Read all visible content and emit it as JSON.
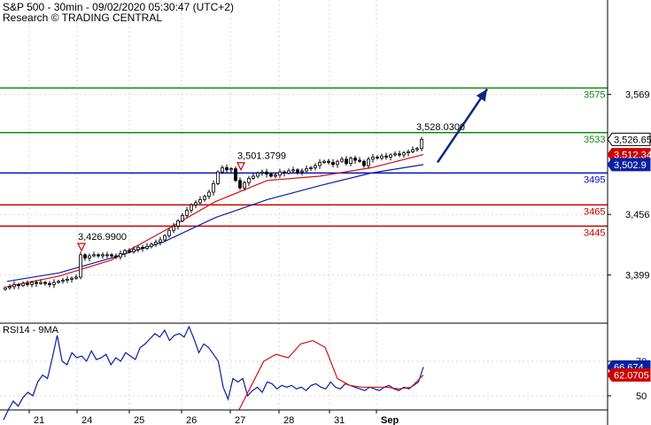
{
  "header": {
    "title": "S&P 500 - 30min - 09/02/2020 05:30:47 (UTC+2)",
    "subtitle": "Research © TRADING CENTRAL"
  },
  "rsi_title": "RSI14 - 9MA",
  "x_labels": [
    "21",
    "24",
    "25",
    "26",
    "27",
    "28",
    "31",
    "Sep"
  ],
  "colors": {
    "candle": "#000000",
    "ma_fast": "#d01010",
    "ma_slow": "#0a1fa0",
    "resistance": "#118811",
    "pivot": "#0010c8",
    "support": "#cc0000",
    "arrow": "#0a2680",
    "rsi": "#0a1fa0",
    "rsi_ma": "#d01010",
    "label_bg": "#0a1fa0",
    "badge_red": "#cc0000"
  },
  "chart_data": [
    {
      "type": "candlestick",
      "title": "S&P 500 - 30min",
      "y_ticks": [
        3569,
        3456,
        3399
      ],
      "y_tick_labels": [
        "3,569",
        "3,456",
        "3,399"
      ],
      "levels": [
        {
          "value": 3575,
          "label": "3575",
          "kind": "resistance"
        },
        {
          "value": 3533,
          "label": "3533",
          "kind": "resistance"
        },
        {
          "value": 3495,
          "label": "3495",
          "kind": "pivot"
        },
        {
          "value": 3465,
          "label": "3465",
          "kind": "support"
        },
        {
          "value": 3445,
          "label": "3445",
          "kind": "support"
        }
      ],
      "badges": [
        {
          "value": 3526.65,
          "label": "3,526.65",
          "style": "price"
        },
        {
          "value": 3512.34,
          "label": "3,512.34",
          "style": "red"
        },
        {
          "value": 3502.9,
          "label": "3,502.9",
          "style": "blue"
        }
      ],
      "annotations": [
        {
          "value": 3528.03,
          "label": "3,528.0300"
        },
        {
          "value": 3501.3799,
          "label": "3,501.3799",
          "marker": "triangle"
        },
        {
          "value": 3426.99,
          "label": "3,426.9900",
          "marker": "triangle"
        }
      ],
      "series": [
        {
          "name": "Close",
          "values": [
            3387,
            3388,
            3390,
            3389,
            3391,
            3390,
            3392,
            3391,
            3392,
            3391,
            3390,
            3392,
            3393,
            3394,
            3395,
            3396,
            3397,
            3418,
            3415,
            3417,
            3418,
            3417,
            3418,
            3418,
            3417,
            3416,
            3419,
            3422,
            3421,
            3423,
            3425,
            3424,
            3426,
            3428,
            3430,
            3432,
            3436,
            3441,
            3445,
            3450,
            3455,
            3460,
            3465,
            3467,
            3470,
            3473,
            3477,
            3485,
            3496,
            3500,
            3498,
            3499,
            3488,
            3481,
            3486,
            3490,
            3492,
            3495,
            3496,
            3494,
            3492,
            3493,
            3496,
            3495,
            3497,
            3498,
            3496,
            3497,
            3499,
            3500,
            3502,
            3505,
            3506,
            3505,
            3503,
            3506,
            3508,
            3504,
            3509,
            3507,
            3506,
            3502,
            3508,
            3510,
            3509,
            3511,
            3510,
            3512,
            3513,
            3512,
            3514,
            3515,
            3517,
            3518,
            3526.65
          ]
        },
        {
          "name": "Fast MA",
          "values": [
            3388,
            3398,
            3413,
            3440,
            3468,
            3488,
            3492,
            3500,
            3512.34
          ]
        },
        {
          "name": "Slow MA",
          "values": [
            3393,
            3401,
            3415,
            3430,
            3453,
            3470,
            3483,
            3495,
            3502.9
          ]
        },
        {
          "name": "RSI14",
          "values": [
            36,
            42,
            47,
            44,
            49,
            52,
            50,
            58,
            62,
            60,
            72,
            85,
            70,
            68,
            75,
            72,
            73,
            70,
            76,
            71,
            72,
            74,
            68,
            72,
            70,
            75,
            73,
            71,
            78,
            80,
            83,
            86,
            84,
            88,
            82,
            85,
            86,
            84,
            90,
            83,
            75,
            80,
            78,
            74,
            70,
            55,
            48,
            60,
            58,
            60,
            50,
            53,
            55,
            52,
            58,
            57,
            54,
            56,
            55,
            56,
            54,
            55,
            53,
            56,
            57,
            55,
            54,
            58,
            55,
            54,
            57,
            56,
            55,
            54,
            53,
            55,
            54,
            53,
            55,
            56,
            54,
            53,
            55,
            54,
            56,
            58,
            66.674
          ]
        },
        {
          "name": "RSI MA",
          "values": [
            42,
            56,
            70,
            74,
            72,
            80,
            82,
            78,
            60,
            56,
            55,
            55,
            55,
            54,
            55,
            62.0705
          ]
        }
      ],
      "forecast_arrow": {
        "from": 3505,
        "to": 3574
      }
    },
    {
      "type": "line",
      "title": "RSI14 - 9MA",
      "y_ticks": [
        70,
        50
      ],
      "y_tick_labels": [
        "70",
        "50"
      ],
      "badges": [
        {
          "value": 66.674,
          "label": "66.674",
          "style": "blue"
        },
        {
          "value": 62.0705,
          "label": "62.0705",
          "style": "red"
        }
      ]
    }
  ]
}
